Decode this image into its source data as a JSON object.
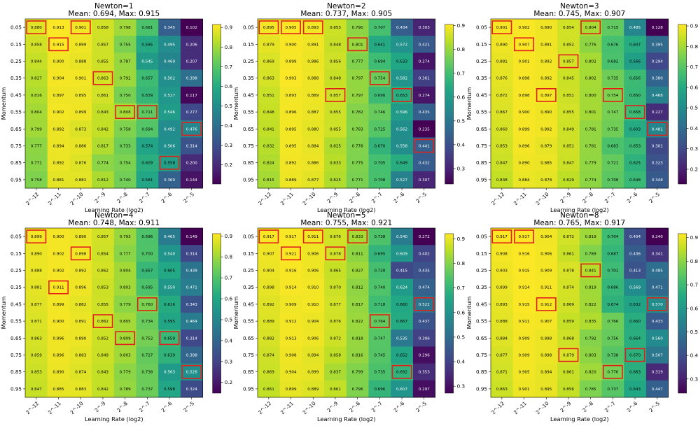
{
  "chart_data": [
    {
      "type": "heatmap",
      "name": "Newton=1",
      "title": "Newton=1",
      "subtitle": "Mean: 0.694, Max: 0.915",
      "xlabel": "Learning Rate (log2)",
      "ylabel": "Momentum",
      "x_categories": [
        "2^-12",
        "2^-11",
        "2^-10",
        "2^-9",
        "2^-8",
        "2^-7",
        "2^-6",
        "2^-5"
      ],
      "y_categories": [
        "0.05",
        "0.15",
        "0.25",
        "0.35",
        "0.45",
        "0.55",
        "0.65",
        "0.75",
        "0.85",
        "0.95"
      ],
      "values": [
        [
          "0.880",
          "0.913",
          "0.901",
          "0.858",
          "0.798",
          "0.681",
          "0.345",
          "0.102"
        ],
        [
          "0.858",
          "0.915",
          "0.899",
          "0.857",
          "0.755",
          "0.595",
          "0.495",
          "0.206"
        ],
        [
          "0.844",
          "0.900",
          "0.888",
          "0.855",
          "0.787",
          "0.545",
          "0.469",
          "0.207"
        ],
        [
          "0.827",
          "0.904",
          "0.901",
          "0.863",
          "0.792",
          "0.657",
          "0.502",
          "0.398"
        ],
        [
          "0.816",
          "0.897",
          "0.895",
          "0.861",
          "0.750",
          "0.639",
          "0.527",
          "0.117"
        ],
        [
          "0.804",
          "0.902",
          "0.899",
          "0.843",
          "0.808",
          "0.711",
          "0.546",
          "0.277"
        ],
        [
          "0.799",
          "0.892",
          "0.873",
          "0.842",
          "0.758",
          "0.694",
          "0.492",
          "0.476"
        ],
        [
          "0.777",
          "0.894",
          "0.886",
          "0.817",
          "0.733",
          "0.574",
          "0.506",
          "0.314"
        ],
        [
          "0.771",
          "0.892",
          "0.876",
          "0.774",
          "0.754",
          "0.609",
          "0.558",
          "0.200"
        ],
        [
          "0.758",
          "0.881",
          "0.882",
          "0.812",
          "0.740",
          "0.581",
          "0.360",
          "0.144"
        ]
      ],
      "highlighted": [
        [
          0,
          0
        ],
        [
          0,
          2
        ],
        [
          1,
          1
        ],
        [
          3,
          3
        ],
        [
          5,
          4
        ],
        [
          5,
          5
        ],
        [
          6,
          7
        ],
        [
          8,
          6
        ]
      ],
      "colorbar_ticks": [
        "0.2",
        "0.3",
        "0.4",
        "0.5",
        "0.6",
        "0.7",
        "0.8",
        "0.9"
      ],
      "colorbar_range": [
        0.102,
        0.915
      ]
    },
    {
      "type": "heatmap",
      "name": "Newton=2",
      "title": "Newton=2",
      "subtitle": "Mean: 0.737, Max: 0.905",
      "xlabel": "Learning Rate (log2)",
      "ylabel": "Momentum",
      "x_categories": [
        "2^-12",
        "2^-11",
        "2^-10",
        "2^-9",
        "2^-8",
        "2^-7",
        "2^-6",
        "2^-5"
      ],
      "y_categories": [
        "0.05",
        "0.15",
        "0.25",
        "0.35",
        "0.45",
        "0.55",
        "0.65",
        "0.75",
        "0.85",
        "0.95"
      ],
      "values": [
        [
          "0.895",
          "0.905",
          "0.893",
          "0.853",
          "0.790",
          "0.707",
          "0.434",
          "0.303"
        ],
        [
          "0.879",
          "0.900",
          "0.891",
          "0.848",
          "0.801",
          "0.641",
          "0.572",
          "0.421"
        ],
        [
          "0.869",
          "0.899",
          "0.886",
          "0.856",
          "0.777",
          "0.694",
          "0.633",
          "0.274"
        ],
        [
          "0.863",
          "0.903",
          "0.888",
          "0.848",
          "0.797",
          "0.754",
          "0.582",
          "0.361"
        ],
        [
          "0.851",
          "0.893",
          "0.889",
          "0.857",
          "0.797",
          "0.690",
          "0.653",
          "0.274"
        ],
        [
          "0.848",
          "0.896",
          "0.887",
          "0.855",
          "0.782",
          "0.746",
          "0.596",
          "0.435"
        ],
        [
          "0.841",
          "0.895",
          "0.880",
          "0.855",
          "0.783",
          "0.725",
          "0.562",
          "0.235"
        ],
        [
          "0.832",
          "0.895",
          "0.884",
          "0.825",
          "0.778",
          "0.670",
          "0.558",
          "0.441"
        ],
        [
          "0.824",
          "0.892",
          "0.886",
          "0.833",
          "0.775",
          "0.705",
          "0.649",
          "0.432"
        ],
        [
          "0.815",
          "0.889",
          "0.877",
          "0.825",
          "0.771",
          "0.708",
          "0.527",
          "0.307"
        ]
      ],
      "highlighted": [
        [
          0,
          0
        ],
        [
          0,
          1
        ],
        [
          0,
          2
        ],
        [
          1,
          4
        ],
        [
          3,
          5
        ],
        [
          4,
          3
        ],
        [
          4,
          6
        ],
        [
          7,
          7
        ]
      ],
      "colorbar_ticks": [
        "0.3",
        "0.4",
        "0.5",
        "0.6",
        "0.7",
        "0.8",
        "0.9"
      ],
      "colorbar_range": [
        0.235,
        0.905
      ]
    },
    {
      "type": "heatmap",
      "name": "Newton=3",
      "title": "Newton=3",
      "subtitle": "Mean: 0.745, Max: 0.907",
      "xlabel": "Learning Rate (log2)",
      "ylabel": "Momentum",
      "x_categories": [
        "2^-12",
        "2^-11",
        "2^-10",
        "2^-9",
        "2^-8",
        "2^-7",
        "2^-6",
        "2^-5"
      ],
      "y_categories": [
        "0.05",
        "0.15",
        "0.25",
        "0.35",
        "0.45",
        "0.55",
        "0.65",
        "0.75",
        "0.85",
        "0.95"
      ],
      "values": [
        [
          "0.901",
          "0.902",
          "0.890",
          "0.854",
          "0.804",
          "0.715",
          "0.485",
          "0.128"
        ],
        [
          "0.890",
          "0.907",
          "0.891",
          "0.852",
          "0.776",
          "0.676",
          "0.607",
          "0.395"
        ],
        [
          "0.881",
          "0.901",
          "0.892",
          "0.857",
          "0.802",
          "0.682",
          "0.566",
          "0.294"
        ],
        [
          "0.876",
          "0.898",
          "0.892",
          "0.845",
          "0.802",
          "0.735",
          "0.656",
          "0.380"
        ],
        [
          "0.872",
          "0.898",
          "0.897",
          "0.851",
          "0.800",
          "0.754",
          "0.650",
          "0.468"
        ],
        [
          "0.867",
          "0.900",
          "0.890",
          "0.855",
          "0.801",
          "0.747",
          "0.658",
          "0.227"
        ],
        [
          "0.860",
          "0.899",
          "0.892",
          "0.849",
          "0.781",
          "0.735",
          "0.603",
          "0.481"
        ],
        [
          "0.853",
          "0.896",
          "0.879",
          "0.851",
          "0.781",
          "0.683",
          "0.653",
          "0.301"
        ],
        [
          "0.847",
          "0.890",
          "0.885",
          "0.847",
          "0.779",
          "0.721",
          "0.625",
          "0.323"
        ],
        [
          "0.838",
          "0.884",
          "0.878",
          "0.829",
          "0.774",
          "0.708",
          "0.648",
          "0.348"
        ]
      ],
      "highlighted": [
        [
          0,
          0
        ],
        [
          0,
          4
        ],
        [
          1,
          1
        ],
        [
          2,
          3
        ],
        [
          4,
          2
        ],
        [
          4,
          5
        ],
        [
          5,
          6
        ],
        [
          6,
          7
        ]
      ],
      "colorbar_ticks": [
        "0.2",
        "0.3",
        "0.4",
        "0.5",
        "0.6",
        "0.7",
        "0.8",
        "0.9"
      ],
      "colorbar_range": [
        0.128,
        0.907
      ]
    },
    {
      "type": "heatmap",
      "name": "Newton=4",
      "title": "Newton=4",
      "subtitle": "Mean: 0.748, Max: 0.911",
      "xlabel": "Learning Rate (log2)",
      "ylabel": "Momentum",
      "x_categories": [
        "2^-12",
        "2^-11",
        "2^-10",
        "2^-9",
        "2^-8",
        "2^-7",
        "2^-6",
        "2^-5"
      ],
      "y_categories": [
        "0.05",
        "0.15",
        "0.25",
        "0.35",
        "0.45",
        "0.55",
        "0.65",
        "0.75",
        "0.85",
        "0.95"
      ],
      "values": [
        [
          "0.899",
          "0.900",
          "0.890",
          "0.857",
          "0.793",
          "0.696",
          "0.465",
          "0.149"
        ],
        [
          "0.890",
          "0.902",
          "0.898",
          "0.854",
          "0.777",
          "0.700",
          "0.540",
          "0.314"
        ],
        [
          "0.888",
          "0.902",
          "0.892",
          "0.862",
          "0.804",
          "0.657",
          "0.605",
          "0.439"
        ],
        [
          "0.881",
          "0.911",
          "0.896",
          "0.853",
          "0.803",
          "0.695",
          "0.550",
          "0.471"
        ],
        [
          "0.877",
          "0.899",
          "0.882",
          "0.855",
          "0.779",
          "0.760",
          "0.616",
          "0.343"
        ],
        [
          "0.871",
          "0.900",
          "0.891",
          "0.862",
          "0.805",
          "0.734",
          "0.595",
          "0.464"
        ],
        [
          "0.863",
          "0.896",
          "0.890",
          "0.852",
          "0.809",
          "0.752",
          "0.659",
          "0.314"
        ],
        [
          "0.859",
          "0.896",
          "0.883",
          "0.849",
          "0.803",
          "0.727",
          "0.639",
          "0.398"
        ],
        [
          "0.853",
          "0.890",
          "0.874",
          "0.843",
          "0.779",
          "0.738",
          "0.563",
          "0.526"
        ],
        [
          "0.847",
          "0.885",
          "0.883",
          "0.842",
          "0.789",
          "0.737",
          "0.598",
          "0.324"
        ]
      ],
      "highlighted": [
        [
          0,
          0
        ],
        [
          1,
          2
        ],
        [
          3,
          1
        ],
        [
          4,
          5
        ],
        [
          5,
          3
        ],
        [
          6,
          4
        ],
        [
          6,
          6
        ],
        [
          8,
          7
        ]
      ],
      "colorbar_ticks": [
        "0.2",
        "0.3",
        "0.4",
        "0.5",
        "0.6",
        "0.7",
        "0.8",
        "0.9"
      ],
      "colorbar_range": [
        0.149,
        0.911
      ]
    },
    {
      "type": "heatmap",
      "name": "Newton=5",
      "title": "Newton=5",
      "subtitle": "Mean: 0.755, Max: 0.921",
      "xlabel": "Learning Rate (log2)",
      "ylabel": "Momentum",
      "x_categories": [
        "2^-12",
        "2^-11",
        "2^-10",
        "2^-9",
        "2^-8",
        "2^-7",
        "2^-6",
        "2^-5"
      ],
      "y_categories": [
        "0.05",
        "0.15",
        "0.25",
        "0.35",
        "0.45",
        "0.55",
        "0.65",
        "0.75",
        "0.85",
        "0.95"
      ],
      "values": [
        [
          "0.917",
          "0.917",
          "0.911",
          "0.876",
          "0.833",
          "0.738",
          "0.540",
          "0.272"
        ],
        [
          "0.907",
          "0.921",
          "0.906",
          "0.878",
          "0.811",
          "0.695",
          "0.609",
          "0.402"
        ],
        [
          "0.904",
          "0.916",
          "0.906",
          "0.865",
          "0.827",
          "0.728",
          "0.415",
          "0.435"
        ],
        [
          "0.898",
          "0.914",
          "0.910",
          "0.870",
          "0.812",
          "0.740",
          "0.624",
          "0.474"
        ],
        [
          "0.892",
          "0.909",
          "0.910",
          "0.877",
          "0.817",
          "0.718",
          "0.660",
          "0.522"
        ],
        [
          "0.889",
          "0.912",
          "0.904",
          "0.876",
          "0.822",
          "0.764",
          "0.667",
          "0.437"
        ],
        [
          "0.882",
          "0.913",
          "0.906",
          "0.872",
          "0.818",
          "0.747",
          "0.535",
          "0.396"
        ],
        [
          "0.874",
          "0.908",
          "0.894",
          "0.858",
          "0.816",
          "0.745",
          "0.652",
          "0.296"
        ],
        [
          "0.869",
          "0.904",
          "0.899",
          "0.837",
          "0.799",
          "0.735",
          "0.692",
          "0.353"
        ],
        [
          "0.861",
          "0.899",
          "0.889",
          "0.861",
          "0.796",
          "0.696",
          "0.607",
          "0.297"
        ]
      ],
      "highlighted": [
        [
          0,
          0
        ],
        [
          0,
          2
        ],
        [
          0,
          4
        ],
        [
          1,
          1
        ],
        [
          1,
          3
        ],
        [
          4,
          7
        ],
        [
          5,
          5
        ],
        [
          8,
          6
        ]
      ],
      "colorbar_ticks": [
        "0.3",
        "0.4",
        "0.5",
        "0.6",
        "0.7",
        "0.8",
        "0.9"
      ],
      "colorbar_range": [
        0.272,
        0.921
      ]
    },
    {
      "type": "heatmap",
      "name": "Newton=8",
      "title": "Newton=8",
      "subtitle": "Mean: 0.765, Max: 0.917",
      "xlabel": "Learning Rate (log2)",
      "ylabel": "Momentum",
      "x_categories": [
        "2^-12",
        "2^-11",
        "2^-10",
        "2^-9",
        "2^-8",
        "2^-7",
        "2^-6",
        "2^-5"
      ],
      "y_categories": [
        "0.05",
        "0.15",
        "0.25",
        "0.35",
        "0.45",
        "0.55",
        "0.65",
        "0.75",
        "0.85",
        "0.95"
      ],
      "values": [
        [
          "0.917",
          "0.917",
          "0.904",
          "0.872",
          "0.819",
          "0.704",
          "0.404",
          "0.240"
        ],
        [
          "0.908",
          "0.916",
          "0.906",
          "0.861",
          "0.789",
          "0.687",
          "0.436",
          "0.341"
        ],
        [
          "0.903",
          "0.915",
          "0.909",
          "0.878",
          "0.841",
          "0.701",
          "0.413",
          "0.485"
        ],
        [
          "0.899",
          "0.914",
          "0.911",
          "0.874",
          "0.819",
          "0.686",
          "0.569",
          "0.471"
        ],
        [
          "0.893",
          "0.915",
          "0.912",
          "0.869",
          "0.822",
          "0.674",
          "0.632",
          "0.570"
        ],
        [
          "0.888",
          "0.911",
          "0.907",
          "0.859",
          "0.835",
          "0.766",
          "0.660",
          "0.433"
        ],
        [
          "0.884",
          "0.909",
          "0.898",
          "0.868",
          "0.792",
          "0.756",
          "0.664",
          "0.560"
        ],
        [
          "0.877",
          "0.909",
          "0.898",
          "0.879",
          "0.803",
          "0.738",
          "0.670",
          "0.507"
        ],
        [
          "0.871",
          "0.905",
          "0.894",
          "0.861",
          "0.820",
          "0.776",
          "0.663",
          "0.319"
        ],
        [
          "0.863",
          "0.901",
          "0.895",
          "0.856",
          "0.785",
          "0.737",
          "0.643",
          "0.447"
        ]
      ],
      "highlighted": [
        [
          0,
          0
        ],
        [
          0,
          1
        ],
        [
          2,
          4
        ],
        [
          4,
          2
        ],
        [
          4,
          7
        ],
        [
          7,
          3
        ],
        [
          7,
          6
        ],
        [
          8,
          5
        ]
      ],
      "colorbar_ticks": [
        "0.3",
        "0.4",
        "0.5",
        "0.6",
        "0.7",
        "0.8",
        "0.9"
      ],
      "colorbar_range": [
        0.24,
        0.917
      ]
    }
  ]
}
